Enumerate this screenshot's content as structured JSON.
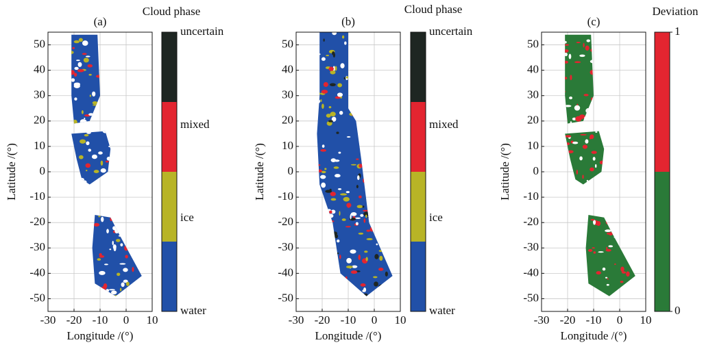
{
  "chart_data": [
    {
      "type": "map",
      "title": "(a)",
      "xlabel": "Longitude /(°)",
      "ylabel": "Latitude /(°)",
      "xlim": [
        -30,
        10
      ],
      "ylim": [
        -55,
        55
      ],
      "xticks": [
        -30,
        -20,
        -10,
        0,
        10
      ],
      "yticks": [
        -50,
        -40,
        -30,
        -20,
        -10,
        0,
        10,
        20,
        30,
        40,
        50
      ],
      "grid": true,
      "colorbar": {
        "title": "Cloud phase",
        "labels": [
          "water",
          "ice",
          "mixed",
          "uncertain"
        ],
        "colors": [
          "#2150a8",
          "#b8b426",
          "#e32530",
          "#1e2622"
        ]
      }
    },
    {
      "type": "map",
      "title": "(b)",
      "xlabel": "Longitude /(°)",
      "ylabel": "Latitude /(°)",
      "xlim": [
        -30,
        10
      ],
      "ylim": [
        -55,
        55
      ],
      "xticks": [
        -30,
        -20,
        -10,
        0,
        10
      ],
      "yticks": [
        -50,
        -40,
        -30,
        -20,
        -10,
        0,
        10,
        20,
        30,
        40,
        50
      ],
      "grid": true,
      "colorbar": {
        "title": "Cloud phase",
        "labels": [
          "water",
          "ice",
          "mixed",
          "uncertain"
        ],
        "colors": [
          "#2150a8",
          "#b8b426",
          "#e32530",
          "#1e2622"
        ]
      }
    },
    {
      "type": "map",
      "title": "(c)",
      "xlabel": "Longitude /(°)",
      "ylabel": "Latitude /(°)",
      "xlim": [
        -30,
        10
      ],
      "ylim": [
        -55,
        55
      ],
      "xticks": [
        -30,
        -20,
        -10,
        0,
        10
      ],
      "yticks": [
        -50,
        -40,
        -30,
        -20,
        -10,
        0,
        10,
        20,
        30,
        40,
        50
      ],
      "grid": true,
      "colorbar": {
        "title": "Deviation",
        "ticks": [
          0,
          1
        ],
        "colors": [
          "#2a7a38",
          "#e32530"
        ]
      }
    }
  ]
}
